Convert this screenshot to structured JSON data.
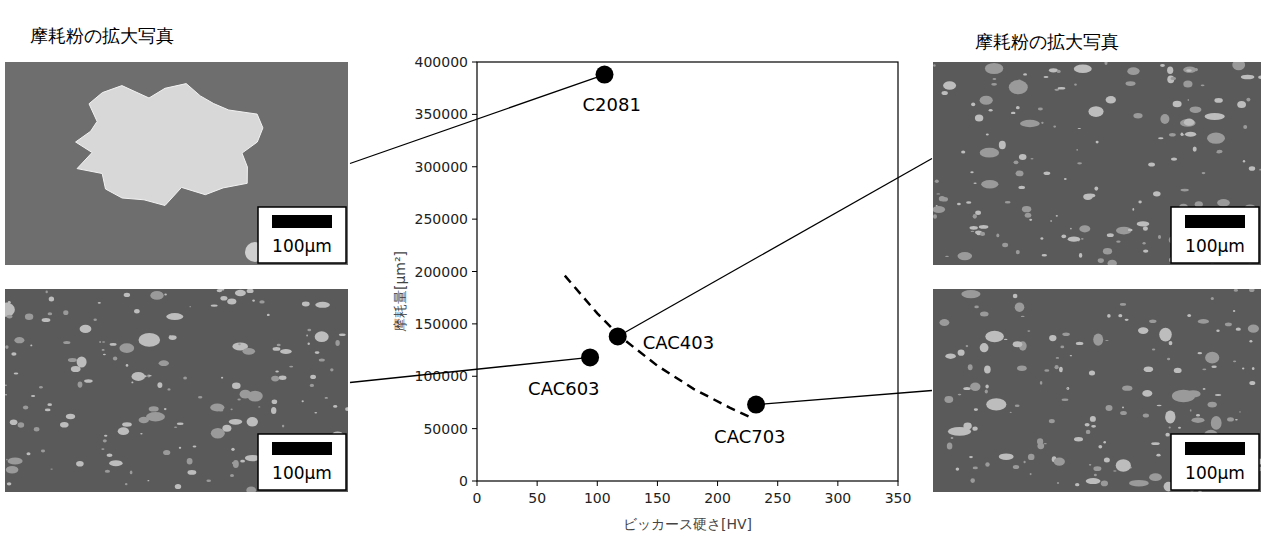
{
  "chart_data": {
    "type": "scatter",
    "x_label": "ビッカース硬さ[HV]",
    "y_label": "摩耗量[μm²]",
    "xlim": [
      0,
      350
    ],
    "xticks": [
      0,
      50,
      100,
      150,
      200,
      250,
      300,
      350
    ],
    "ylim": [
      0,
      400000
    ],
    "yticks": [
      0,
      50000,
      100000,
      150000,
      200000,
      250000,
      300000,
      350000,
      400000
    ],
    "grid": false,
    "series": [
      {
        "type": "scatter",
        "color": "#000000",
        "marker": "circle",
        "labels": [
          "C2081",
          "CAC403",
          "CAC603",
          "CAC703"
        ],
        "x": [
          106,
          117,
          94,
          232
        ],
        "values": [
          388000,
          138000,
          118000,
          73000
        ]
      },
      {
        "type": "line",
        "color": "#000000",
        "line_style": "dashed",
        "x": [
          73,
          100,
          120,
          150,
          180,
          210,
          227
        ],
        "values": [
          196000,
          160000,
          137000,
          110000,
          88000,
          70000,
          61000
        ]
      }
    ],
    "panel_titles": [
      "摩耗粉の拡大写真",
      "摩耗粉の拡大写真"
    ],
    "photos": [
      {
        "scale_bar": "100μm"
      },
      {
        "scale_bar": "100μm"
      },
      {
        "scale_bar": "100μm"
      },
      {
        "scale_bar": "100μm"
      }
    ]
  }
}
